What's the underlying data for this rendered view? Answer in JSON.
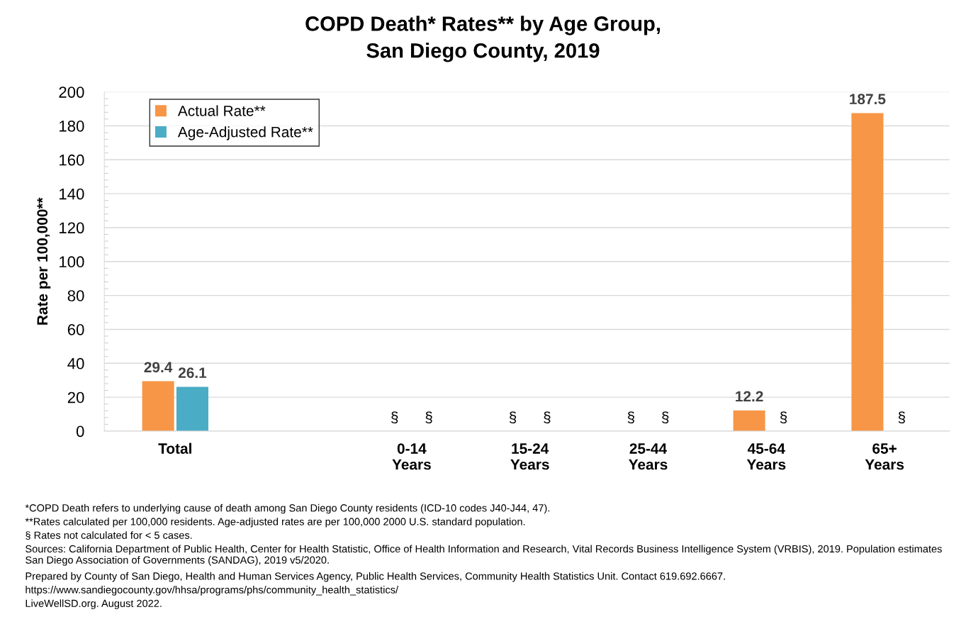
{
  "chart_data": {
    "type": "bar",
    "title": "COPD Death* Rates** by Age Group,\nSan Diego County, 2019",
    "ylabel": "Rate per 100,000**",
    "categories": [
      "Total",
      null,
      "0-14\nYears",
      "15-24\nYears",
      "25-44\nYears",
      "45-64\nYears",
      "65+\nYears"
    ],
    "series": [
      {
        "name": "Actual Rate**",
        "color": "#f79646",
        "values": [
          29.4,
          null,
          null,
          null,
          null,
          12.2,
          187.5
        ],
        "value_labels": [
          "29.4",
          null,
          "§",
          "§",
          "§",
          "12.2",
          "187.5"
        ]
      },
      {
        "name": "Age-Adjusted Rate**",
        "color": "#4bacc6",
        "values": [
          26.1,
          null,
          null,
          null,
          null,
          null,
          null
        ],
        "value_labels": [
          "26.1",
          null,
          "§",
          "§",
          "§",
          "§",
          "§"
        ]
      }
    ],
    "ylim": [
      0,
      200
    ],
    "yticks": [
      0,
      20,
      40,
      60,
      80,
      100,
      120,
      140,
      160,
      180,
      200
    ],
    "grid": "y",
    "legend": "top left",
    "annotations": [
      "*COPD Death refers to underlying cause of death among San Diego County residents (ICD-10 codes J40-J44, 47).",
      "**Rates calculated per 100,000 residents. Age-adjusted rates are per 100,000 2000 U.S. standard population.",
      "§ Rates not calculated for < 5 cases.",
      "Sources: California Department of Public Health, Center for Health Statistic, Office of Health Information and Research, Vital Records Business Intelligence System (VRBIS), 2019. Population estimates\nSan Diego Association of Governments (SANDAG), 2019 v5/2020.",
      "Prepared by County of San Diego, Health and Human Services Agency, Public Health Services, Community Health Statistics Unit. Contact 619.692.6667.",
      "https://www.sandiegocounty.gov/hhsa/programs/phs/community_health_statistics/",
      "LiveWellSD.org. August 2022."
    ]
  }
}
